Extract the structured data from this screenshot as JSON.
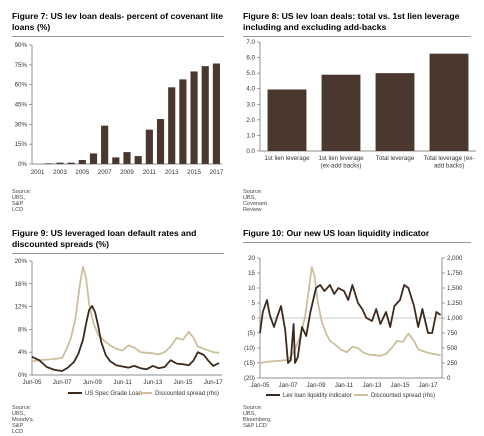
{
  "charts": [
    {
      "title": "Figure 7: US lev loan deals- percent of covenant lite loans (%)",
      "source": "Source:  UBS, S&P LCD"
    },
    {
      "title": "Figure 8: US lev loan deals:  total vs. 1st lien leverage including and excluding add-backs",
      "source": "Source:  UBS, Covenant Review"
    },
    {
      "title": "Figure 9: US leveraged loan default rates and discounted spreads (%)",
      "source": "Source:  UBS, Moody's, S&P LCD"
    },
    {
      "title": "Figure 10: Our new US loan liquidity indicator",
      "source": "Source:  UBS, Bloomberg, S&P LCD"
    }
  ],
  "chart_data": [
    {
      "type": "bar",
      "title": "Figure 7: US lev loan deals- percent of covenant lite loans (%)",
      "color": "#4a382e",
      "ylim": [
        0,
        90
      ],
      "yticks": [
        "0%",
        "15%",
        "30%",
        "45%",
        "60%",
        "75%",
        "90%"
      ],
      "ytick_values": [
        0,
        15,
        30,
        45,
        60,
        75,
        90
      ],
      "xtick_labels": [
        "2001",
        "2003",
        "2005",
        "2007",
        "2009",
        "2011",
        "2013",
        "2015",
        "2017"
      ],
      "categories": [
        "2001",
        "2002",
        "2003",
        "2004",
        "2005",
        "2006",
        "2007",
        "2008",
        "2009",
        "2010",
        "2011",
        "2012",
        "2013",
        "2014",
        "2015",
        "2016",
        "2017"
      ],
      "values": [
        0,
        0.5,
        1,
        1,
        3,
        8,
        29,
        5,
        9,
        6,
        26,
        34,
        58,
        64,
        70,
        74,
        76
      ]
    },
    {
      "type": "bar",
      "title": "Figure 8: US lev loan deals:  total vs. 1st lien leverage including and excluding add-backs",
      "color": "#4a382e",
      "ylim": [
        0,
        7
      ],
      "yticks": [
        "0.0",
        "1.0",
        "2.0",
        "3.0",
        "4.0",
        "5.0",
        "6.0",
        "7.0"
      ],
      "ytick_values": [
        0,
        1,
        2,
        3,
        4,
        5,
        6,
        7
      ],
      "categories": [
        "1st lien leverage",
        "1st lien leverage (ex-add backs)",
        "Total leverage",
        "Total leverage (ex-add backs)"
      ],
      "category_lines": [
        [
          "1st lien leverage"
        ],
        [
          "1st lien leverage",
          "(ex-add backs)"
        ],
        [
          "Total leverage"
        ],
        [
          "Total leverage (ex-",
          "add backs)"
        ]
      ],
      "values": [
        3.95,
        4.9,
        5.0,
        6.25
      ]
    },
    {
      "type": "line",
      "title": "Figure 9: US leveraged loan default rates and discounted spreads (%)",
      "ylim": [
        0,
        20
      ],
      "yticks": [
        "0%",
        "4%",
        "8%",
        "12%",
        "16%",
        "20%"
      ],
      "ytick_values": [
        0,
        4,
        8,
        12,
        16,
        20
      ],
      "xlim": [
        2005.42,
        2018.0
      ],
      "xtick_labels": [
        "Jun-05",
        "Jun-07",
        "Jun-09",
        "Jun-11",
        "Jun-13",
        "Jun-15",
        "Jun-17"
      ],
      "xtick_values": [
        2005.42,
        2007.42,
        2009.42,
        2011.42,
        2013.42,
        2015.42,
        2017.42
      ],
      "series": [
        {
          "name": "US Spec Grade Loan",
          "color": "#3d2a1e",
          "width": 1.8,
          "x": [
            2005.42,
            2005.9,
            2006.4,
            2006.9,
            2007.42,
            2007.8,
            2008.2,
            2008.5,
            2008.8,
            2009.0,
            2009.2,
            2009.4,
            2009.6,
            2009.8,
            2010.0,
            2010.3,
            2010.6,
            2011.0,
            2011.42,
            2011.8,
            2012.2,
            2012.6,
            2013.0,
            2013.42,
            2013.8,
            2014.2,
            2014.6,
            2015.0,
            2015.42,
            2015.8,
            2016.1,
            2016.4,
            2016.8,
            2017.1,
            2017.42,
            2017.8
          ],
          "y": [
            3.2,
            2.6,
            1.4,
            0.9,
            0.7,
            1.3,
            2.3,
            3.8,
            6.2,
            9.0,
            11.4,
            12.1,
            11.0,
            8.6,
            5.8,
            3.5,
            2.4,
            1.7,
            1.5,
            1.3,
            1.6,
            1.2,
            1.0,
            1.6,
            1.2,
            1.4,
            2.6,
            2.0,
            1.9,
            1.7,
            2.5,
            4.0,
            3.5,
            2.5,
            1.6,
            2.1
          ]
        },
        {
          "name": "Discounted spread (rhs)",
          "color": "#cdbf9e",
          "width": 1.8,
          "x": [
            2005.42,
            2005.9,
            2006.4,
            2006.9,
            2007.42,
            2007.7,
            2008.0,
            2008.3,
            2008.6,
            2008.8,
            2009.0,
            2009.2,
            2009.5,
            2009.8,
            2010.2,
            2010.6,
            2011.0,
            2011.42,
            2011.8,
            2012.2,
            2012.6,
            2013.0,
            2013.42,
            2013.8,
            2014.2,
            2014.6,
            2015.0,
            2015.42,
            2015.8,
            2016.1,
            2016.4,
            2016.8,
            2017.1,
            2017.42,
            2017.8
          ],
          "y": [
            2.4,
            2.6,
            2.7,
            2.8,
            3.0,
            4.5,
            6.5,
            10.0,
            16.0,
            19.0,
            17.0,
            12.5,
            9.0,
            7.0,
            6.0,
            5.2,
            4.6,
            4.3,
            5.2,
            4.8,
            4.0,
            3.9,
            3.8,
            3.6,
            4.0,
            5.0,
            6.5,
            6.2,
            7.6,
            6.6,
            5.0,
            4.6,
            4.3,
            4.0,
            3.9
          ]
        }
      ]
    },
    {
      "type": "line",
      "title": "Figure 10: Our new US loan liquidity indicator",
      "ylim": [
        -20,
        20
      ],
      "yticks": [
        "(20)",
        "(15)",
        "(10)",
        "(5)",
        "0",
        "5",
        "10",
        "15",
        "20"
      ],
      "ytick_values": [
        -20,
        -15,
        -10,
        -5,
        0,
        5,
        10,
        15,
        20
      ],
      "ylim_rhs": [
        0,
        2000
      ],
      "yticks_rhs": [
        "0",
        "250",
        "500",
        "750",
        "1,000",
        "1,250",
        "1,500",
        "1,750",
        "2,000"
      ],
      "ytick_values_rhs": [
        0,
        250,
        500,
        750,
        1000,
        1250,
        1500,
        1750,
        2000
      ],
      "xlim": [
        2005.0,
        2018.0
      ],
      "xtick_labels": [
        "Jan-05",
        "Jan-07",
        "Jan-09",
        "Jan-11",
        "Jan-13",
        "Jan-15",
        "Jan-17"
      ],
      "xtick_values": [
        2005.0,
        2007.0,
        2009.0,
        2011.0,
        2013.0,
        2015.0,
        2017.0
      ],
      "series": [
        {
          "name": "Lev loan liquidity indicator",
          "color": "#3d2a1e",
          "width": 1.8,
          "axis": "left",
          "x": [
            2005.0,
            2005.2,
            2005.5,
            2005.7,
            2006.0,
            2006.2,
            2006.5,
            2006.8,
            2007.0,
            2007.2,
            2007.4,
            2007.5,
            2007.7,
            2008.0,
            2008.3,
            2008.6,
            2009.0,
            2009.3,
            2009.6,
            2010.0,
            2010.3,
            2010.6,
            2011.0,
            2011.3,
            2011.6,
            2012.0,
            2012.3,
            2012.6,
            2013.0,
            2013.3,
            2013.6,
            2014.0,
            2014.3,
            2014.6,
            2015.0,
            2015.3,
            2015.6,
            2016.0,
            2016.3,
            2016.6,
            2017.0,
            2017.3,
            2017.6,
            2017.9
          ],
          "y": [
            -5,
            2,
            6,
            1,
            -3,
            0,
            4,
            -4,
            -15,
            -14,
            -2,
            -15,
            -13,
            -3,
            -6,
            2,
            10,
            11,
            9,
            11,
            8,
            10,
            9,
            6,
            11,
            5,
            3,
            0,
            -1,
            3,
            -2,
            2,
            -3,
            4,
            6,
            11,
            10,
            4,
            -3,
            3,
            -5,
            -5,
            2,
            1
          ]
        },
        {
          "name": "Discounted spread (rhs)",
          "color": "#cdbf9e",
          "width": 1.8,
          "axis": "right",
          "x": [
            2005.0,
            2005.5,
            2006.0,
            2006.5,
            2007.0,
            2007.4,
            2007.8,
            2008.2,
            2008.5,
            2008.7,
            2008.9,
            2009.1,
            2009.4,
            2009.7,
            2010.0,
            2010.4,
            2010.8,
            2011.2,
            2011.6,
            2012.0,
            2012.4,
            2012.8,
            2013.2,
            2013.6,
            2014.0,
            2014.4,
            2014.8,
            2015.2,
            2015.6,
            2016.0,
            2016.3,
            2016.6,
            2017.0,
            2017.4,
            2017.9
          ],
          "y": [
            250,
            270,
            280,
            290,
            300,
            430,
            650,
            1000,
            1500,
            1850,
            1700,
            1300,
            950,
            750,
            620,
            550,
            470,
            430,
            520,
            500,
            420,
            390,
            380,
            370,
            400,
            500,
            620,
            600,
            740,
            620,
            480,
            450,
            420,
            400,
            380
          ]
        }
      ]
    }
  ]
}
